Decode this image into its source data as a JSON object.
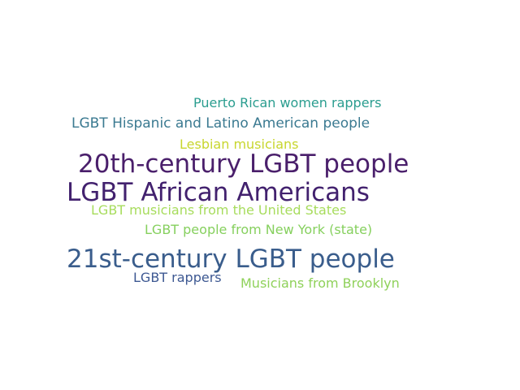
{
  "word_cloud": {
    "words": [
      {
        "text": "Puerto Rican women rappers",
        "color": "#2a9d8f"
      },
      {
        "text": "LGBT Hispanic and Latino American people",
        "color": "#3b7a91"
      },
      {
        "text": "Lesbian musicians",
        "color": "#c8d62e"
      },
      {
        "text": "20th-century LGBT people",
        "color": "#4a1f6b"
      },
      {
        "text": "LGBT African Americans",
        "color": "#42216e"
      },
      {
        "text": "LGBT musicians from the United States",
        "color": "#a7dc5c"
      },
      {
        "text": "LGBT people from New York (state)",
        "color": "#86d05e"
      },
      {
        "text": "21st-century LGBT people",
        "color": "#3a5d8c"
      },
      {
        "text": "LGBT rappers",
        "color": "#3d5892"
      },
      {
        "text": "Musicians from Brooklyn",
        "color": "#8fd15a"
      }
    ]
  }
}
